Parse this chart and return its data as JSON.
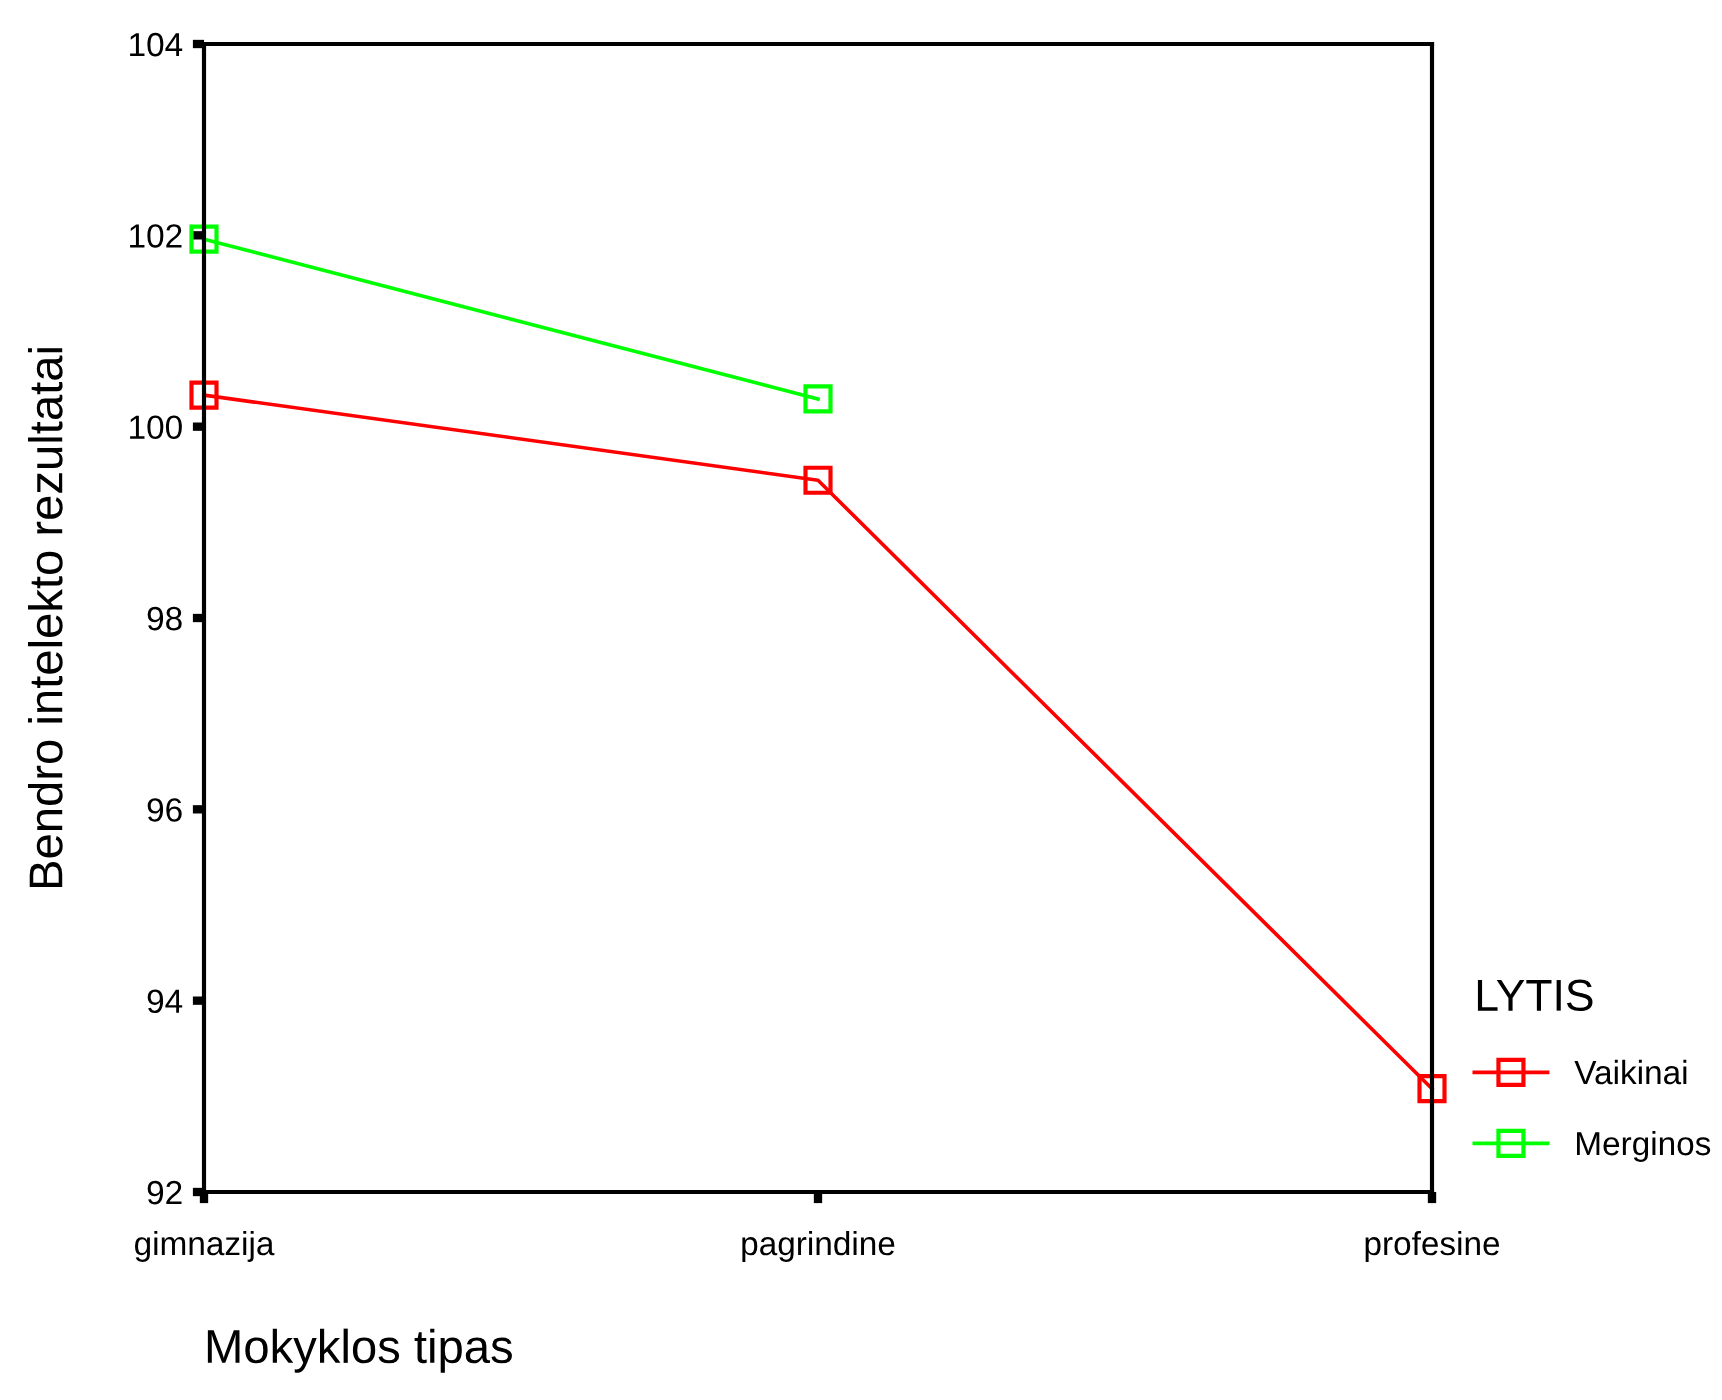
{
  "chart_data": {
    "type": "line",
    "xlabel": "Mokyklos tipas",
    "ylabel": "Bendro intelekto rezultatai",
    "legend_title": "LYTIS",
    "categories": [
      "gimnazija",
      "pagrindine",
      "profesine"
    ],
    "series": [
      {
        "name": "Vaikinai",
        "color": "#ff0000",
        "values": [
          100.33,
          99.44,
          93.08
        ]
      },
      {
        "name": "Merginos",
        "color": "#00ff00",
        "values": [
          101.96,
          100.29,
          null
        ]
      }
    ],
    "ylim": [
      92,
      104
    ],
    "yticks": [
      92,
      94,
      96,
      98,
      100,
      102,
      104
    ],
    "marker": "square",
    "legend": "bottom right",
    "grid": false
  }
}
